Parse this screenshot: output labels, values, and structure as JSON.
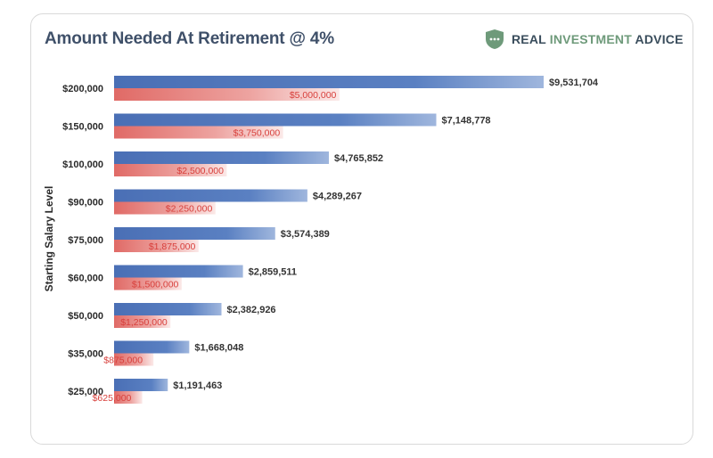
{
  "header": {
    "title": "Amount Needed At Retirement @ 4%",
    "logo_word1": "REAL ",
    "logo_word2": "INVESTMENT",
    "logo_word3": " ADVICE"
  },
  "colors": {
    "blue_series": "#4a6fb5",
    "red_series": "#e06a66",
    "title": "#3f5069",
    "logo_green": "#6e9a7a"
  },
  "chart_data": {
    "type": "bar",
    "orientation": "horizontal",
    "title": "Amount Needed At Retirement @ 4%",
    "ylabel": "Starting Salary Level",
    "xlabel": "",
    "categories": [
      "$200,000",
      "$150,000",
      "$100,000",
      "$90,000",
      "$75,000",
      "$60,000",
      "$50,000",
      "$35,000",
      "$25,000"
    ],
    "series": [
      {
        "values": [
          9531704,
          7148778,
          4765852,
          4289267,
          3574389,
          2859511,
          2382926,
          1668048,
          1191463
        ],
        "labels": [
          "$9,531,704",
          "$7,148,778",
          "$4,765,852",
          "$4,289,267",
          "$3,574,389",
          "$2,859,511",
          "$2,382,926",
          "$1,668,048",
          "$1,191,463"
        ],
        "color": "#4a6fb5"
      },
      {
        "values": [
          5000000,
          3750000,
          2500000,
          2250000,
          1875000,
          1500000,
          1250000,
          875000,
          625000
        ],
        "labels": [
          "$5,000,000",
          "$3,750,000",
          "$2,500,000",
          "$2,250,000",
          "$1,875,000",
          "$1,500,000",
          "$1,250,000",
          "$875,000",
          "$625,000"
        ],
        "color": "#e06a66"
      }
    ],
    "xlim": [
      0,
      9531704
    ],
    "grid": false,
    "legend": "none"
  }
}
